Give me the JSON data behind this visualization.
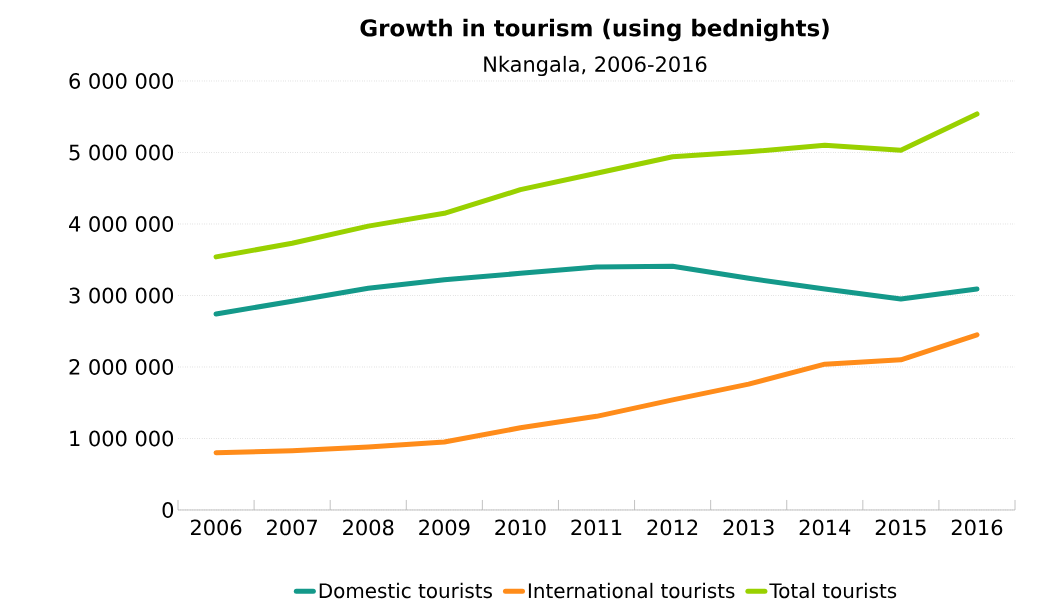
{
  "chart_data": {
    "type": "line",
    "title": "Growth in tourism (using bednights)",
    "subtitle": "Nkangala, 2006-2016",
    "categories": [
      "2006",
      "2007",
      "2008",
      "2009",
      "2010",
      "2011",
      "2012",
      "2013",
      "2014",
      "2015",
      "2016"
    ],
    "series": [
      {
        "name": "Domestic tourists",
        "color": "#14998a",
        "values": [
          2740000,
          2920000,
          3100000,
          3220000,
          3310000,
          3400000,
          3410000,
          3240000,
          3090000,
          2950000,
          3090000
        ]
      },
      {
        "name": "International tourists",
        "color": "#ff8c1a",
        "values": [
          800000,
          830000,
          880000,
          950000,
          1150000,
          1310000,
          1540000,
          1760000,
          2040000,
          2100000,
          2450000
        ]
      },
      {
        "name": "Total tourists",
        "color": "#99d100",
        "values": [
          3540000,
          3730000,
          3970000,
          4150000,
          4480000,
          4710000,
          4940000,
          5010000,
          5100000,
          5030000,
          5540000
        ]
      }
    ],
    "ylim": [
      0,
      6000000
    ],
    "yticks": [
      0,
      {
        "value": 1000000,
        "label": "1 000 000"
      },
      {
        "value": 2000000,
        "label": "2 000 000"
      },
      {
        "value": 3000000,
        "label": "3 000 000"
      },
      {
        "value": 4000000,
        "label": "4 000 000"
      },
      {
        "value": 5000000,
        "label": "5 000 000"
      },
      {
        "value": 6000000,
        "label": "6 000 000"
      }
    ],
    "grid": "y",
    "legend": "bottom"
  }
}
